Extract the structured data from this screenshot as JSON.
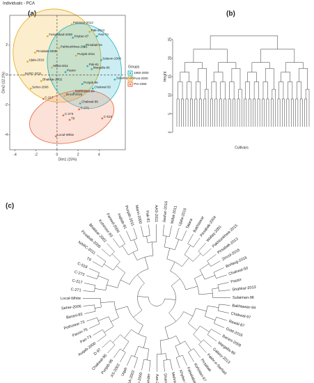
{
  "chart_data": [
    {
      "type": "scatter",
      "panel": "(a)",
      "title": "Individuals - PCA",
      "xlabel": "Dim1 (15%)",
      "ylabel": "Dim2 (12.1%)",
      "xlim": [
        -4.5,
        6.5
      ],
      "ylim": [
        -5,
        4
      ],
      "xticks": [
        -4,
        -2,
        0,
        2,
        4
      ],
      "yticks": [
        -4,
        -2,
        0,
        2
      ],
      "legend_title": "Groups",
      "series": [
        {
          "name": "1965-2000",
          "color": "#17b3c2",
          "x": [
            1.5,
            2.6,
            3.8,
            4.2,
            2.9,
            0.8,
            3.3,
            2.4,
            5.5,
            2.2,
            1.6,
            3.4
          ],
          "y": [
            2.5,
            1.9,
            2.6,
            1.0,
            0.6,
            0.2,
            0.4,
            -0.6,
            -0.3,
            -1.9,
            -1.2,
            -0.9
          ],
          "labels": [
            "Khyber-87",
            "Pirsabak-91",
            "Pari-73",
            "Saleem-2000",
            "Pak-81",
            "Pastor",
            "Margalla-99",
            "Punjab-96",
            "Sulaiman-96",
            "Chakwal-86",
            "Bakhtawar-94",
            "Chakwal-50"
          ]
        },
        {
          "name": "Post-2000",
          "color": "#e6a817",
          "x": [
            1.4,
            3.1,
            -0.9,
            0.2,
            -2.1,
            -2.8,
            -0.5,
            1.8,
            -3.2,
            -1.5,
            -2.5,
            0.7
          ],
          "y": [
            3.4,
            2.9,
            2.6,
            1.8,
            1.5,
            0.9,
            0.5,
            1.3,
            0.0,
            -0.4,
            -0.9,
            -1.4
          ],
          "labels": [
            "Pakistan-2013",
            "Pak-2013",
            "Faisalabad-2008",
            "Pakhtunkhwa-2015",
            "Pirsabak-2008",
            "Ujala-2016",
            "Millat-2011",
            "Punjab-2011",
            "NARC-2011",
            "Bhakkar-2002",
            "Seher-2006",
            "Zincol-2016"
          ]
        },
        {
          "name": "Pre-1965",
          "color": "#e8643c",
          "x": [
            -1.3,
            2.1,
            0.6,
            1.2,
            4.3,
            -0.1
          ],
          "y": [
            -1.6,
            -2.3,
            -2.7,
            -3.0,
            -2.9,
            -4.1
          ],
          "labels": [
            "C-217",
            "C-271",
            "C-273",
            "T9",
            "C-518",
            "Local-White"
          ]
        }
      ]
    },
    {
      "type": "dendrogram",
      "panel": "(b)",
      "xlabel": "Cultivars",
      "ylabel": "Height",
      "ylim": [
        0,
        30
      ],
      "yticks": [
        0,
        5,
        10,
        15,
        20,
        25
      ]
    },
    {
      "type": "circular-dendrogram",
      "panel": "(c)",
      "leaves": [
        "Jauhar-2016",
        "Millat-2011",
        "Ujala-2016",
        "Tatara",
        "Bakhtawar",
        "Pirsabak-2004",
        "Wafaq-2001",
        "Pakhtunkhwa-2015",
        "Pirsabak-2013",
        "Zincol-2016",
        "Borlaug-2016",
        "Chakwal-50",
        "Pastor",
        "Shahkar-2013",
        "Sulaiman-96",
        "Bakhtawar-94",
        "Chakwal-97",
        "Rawal-87",
        "Gold-2016",
        "Barani-2009",
        "Margalla-99",
        "Galaxy-2013",
        "Fakhr-e-Sarhad",
        "Pirsabak",
        "Kohistan-97",
        "Faisalabad-2008",
        "Khyber-87",
        "Mehran-89",
        "Dharabi-2011",
        "Aas-2011",
        "NIA-Sunder",
        "Uqab-2000",
        "GA-2002",
        "Uqab",
        "AS-2002",
        "Punjab-96",
        "Chakwal-86",
        "D-97",
        "Auqab-2000",
        "Pari-73",
        "Pavon-76",
        "Pothowar-73",
        "Barani-83",
        "Seher-2006",
        "Local-White",
        "C-271",
        "C-217",
        "C-273",
        "C-518",
        "T9",
        "NARC-2011",
        "Pirsabak-2005",
        "Bhakkar-2002",
        "Kohinoor-83",
        "Fareed-2006",
        "Inqilab-91",
        "Punjab-2011",
        "Marvi-2000",
        "Pak-81",
        "AAS-2011"
      ]
    }
  ]
}
